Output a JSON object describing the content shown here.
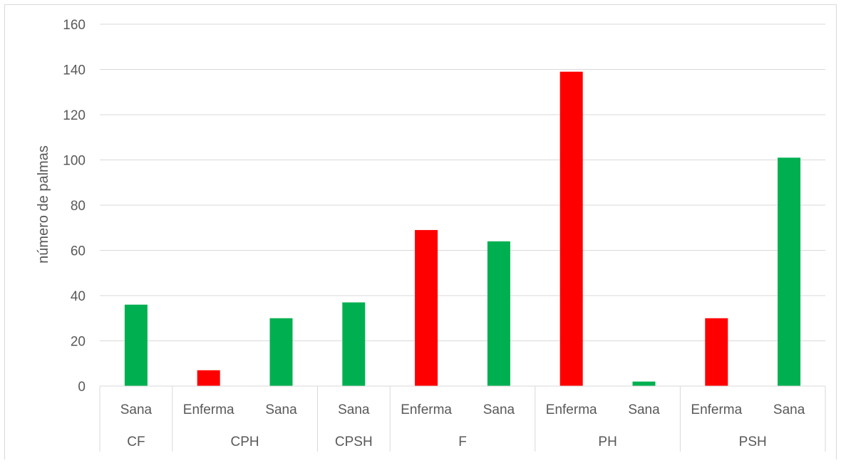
{
  "chart_data": {
    "type": "bar",
    "title": "",
    "xlabel": "",
    "ylabel": "número de palmas",
    "ylim": [
      0,
      160
    ],
    "yticks": [
      0,
      20,
      40,
      60,
      80,
      100,
      120,
      140,
      160
    ],
    "grid": true,
    "legend": "none",
    "colors": {
      "Enferma": "#ff0000",
      "Sana": "#00b050"
    },
    "groups": [
      {
        "name": "CF",
        "bars": [
          {
            "label": "Sana",
            "value": 36
          }
        ]
      },
      {
        "name": "CPH",
        "bars": [
          {
            "label": "Enferma",
            "value": 7
          },
          {
            "label": "Sana",
            "value": 30
          }
        ]
      },
      {
        "name": "CPSH",
        "bars": [
          {
            "label": "Sana",
            "value": 37
          }
        ]
      },
      {
        "name": "F",
        "bars": [
          {
            "label": "Enferma",
            "value": 69
          },
          {
            "label": "Sana",
            "value": 64
          }
        ]
      },
      {
        "name": "PH",
        "bars": [
          {
            "label": "Enferma",
            "value": 139
          },
          {
            "label": "Sana",
            "value": 2
          }
        ]
      },
      {
        "name": "PSH",
        "bars": [
          {
            "label": "Enferma",
            "value": 30
          },
          {
            "label": "Sana",
            "value": 101
          }
        ]
      }
    ]
  }
}
